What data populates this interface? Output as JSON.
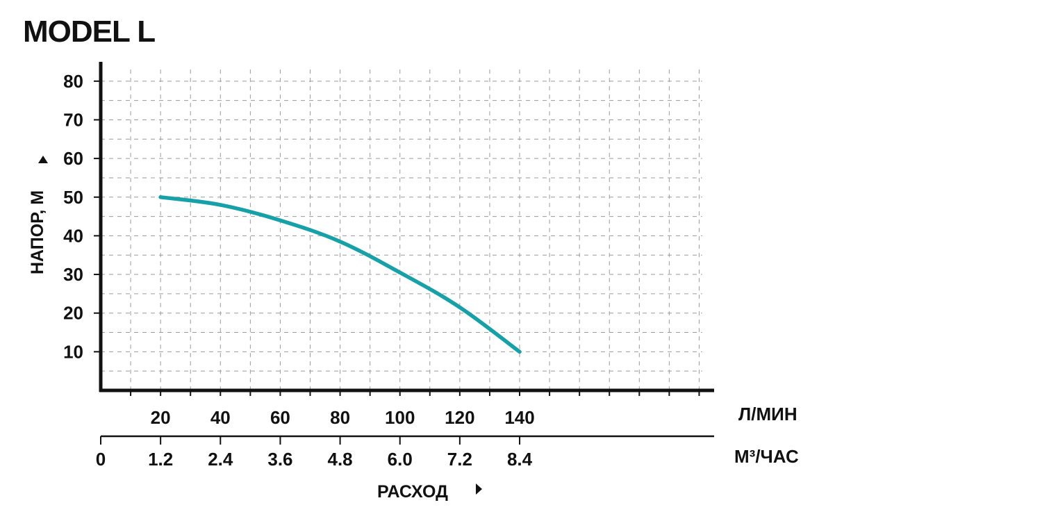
{
  "chart_data": {
    "type": "line",
    "title": "MODEL L",
    "ylabel": "НАПОР, М",
    "xlabel": "РАСХОД",
    "y_ticks": [
      10,
      20,
      30,
      40,
      50,
      60,
      70,
      80
    ],
    "x_ticks_lmin": [
      20,
      40,
      60,
      80,
      100,
      120,
      140
    ],
    "x_unit_lmin": "Л/МИН",
    "x_ticks_m3h": [
      "0",
      "1.2",
      "2.4",
      "3.6",
      "4.8",
      "6.0",
      "7.2",
      "8.4"
    ],
    "x_unit_m3h": "М³/ЧАС",
    "ylim": [
      0,
      85
    ],
    "xlim_lmin": [
      0,
      205
    ],
    "grid": true,
    "colors": {
      "curve": "#16a0a8",
      "axis": "#111111",
      "grid": "#9a9a9a"
    },
    "series": [
      {
        "x": [
          20,
          40,
          60,
          80,
          100,
          120,
          140
        ],
        "y": [
          50,
          48,
          44,
          38.5,
          30.5,
          21.5,
          10
        ]
      }
    ]
  }
}
